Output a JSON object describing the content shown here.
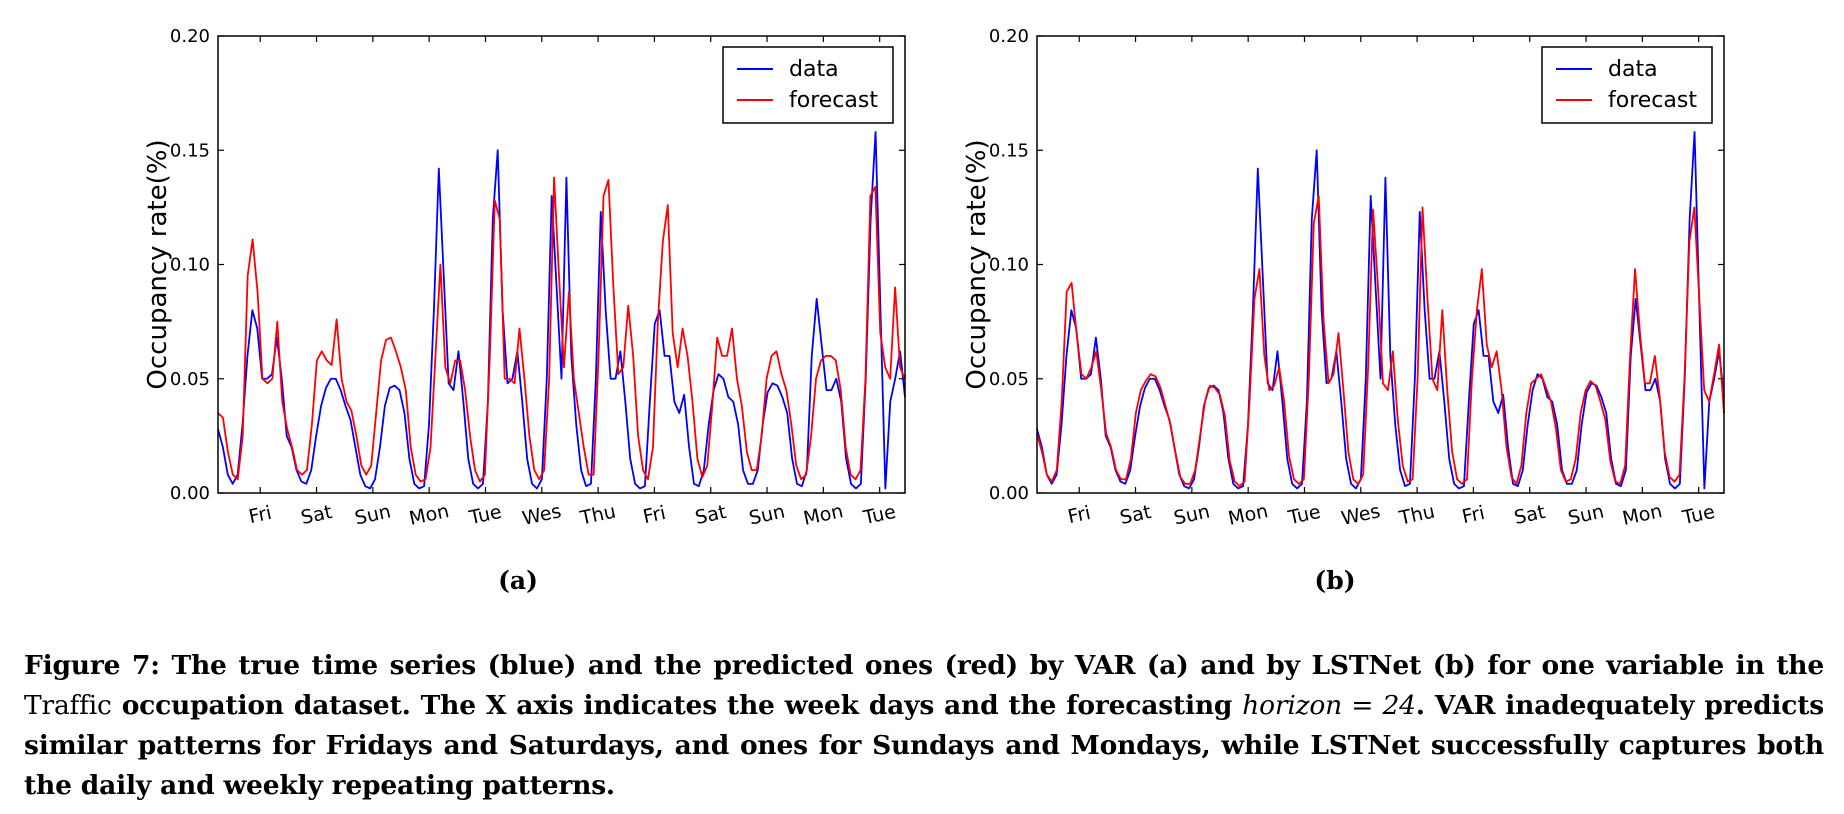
{
  "chart_data": [
    {
      "type": "line",
      "panel": "(a)",
      "xlabel": "",
      "ylabel": "Occupancy rate(%)",
      "ylim": [
        0,
        0.2
      ],
      "yticks": [
        "0.00",
        "0.05",
        "0.10",
        "0.15",
        "0.20"
      ],
      "xticks": [
        "Fri",
        "Sat",
        "Sun",
        "Mon",
        "Tue",
        "Wes",
        "Thu",
        "Fri",
        "Sat",
        "Sun",
        "Mon",
        "Tue"
      ],
      "legend": "top-right",
      "series": [
        {
          "name": "data",
          "color": "#0000ff",
          "values": [
            0.028,
            0.02,
            0.008,
            0.004,
            0.008,
            0.03,
            0.06,
            0.08,
            0.072,
            0.05,
            0.05,
            0.052,
            0.068,
            0.05,
            0.025,
            0.02,
            0.01,
            0.005,
            0.004,
            0.01,
            0.025,
            0.038,
            0.046,
            0.05,
            0.05,
            0.045,
            0.038,
            0.032,
            0.02,
            0.008,
            0.003,
            0.002,
            0.006,
            0.02,
            0.038,
            0.046,
            0.047,
            0.045,
            0.035,
            0.015,
            0.004,
            0.002,
            0.003,
            0.03,
            0.08,
            0.142,
            0.095,
            0.048,
            0.045,
            0.062,
            0.04,
            0.015,
            0.004,
            0.002,
            0.004,
            0.04,
            0.12,
            0.15,
            0.08,
            0.048,
            0.05,
            0.062,
            0.04,
            0.015,
            0.004,
            0.002,
            0.006,
            0.05,
            0.13,
            0.09,
            0.05,
            0.138,
            0.06,
            0.03,
            0.01,
            0.003,
            0.004,
            0.05,
            0.123,
            0.08,
            0.05,
            0.05,
            0.062,
            0.04,
            0.015,
            0.004,
            0.002,
            0.003,
            0.04,
            0.074,
            0.08,
            0.06,
            0.06,
            0.04,
            0.035,
            0.043,
            0.02,
            0.004,
            0.003,
            0.01,
            0.03,
            0.045,
            0.052,
            0.05,
            0.042,
            0.04,
            0.03,
            0.01,
            0.004,
            0.004,
            0.01,
            0.03,
            0.044,
            0.048,
            0.047,
            0.042,
            0.035,
            0.015,
            0.004,
            0.003,
            0.01,
            0.06,
            0.085,
            0.065,
            0.045,
            0.045,
            0.05,
            0.04,
            0.015,
            0.004,
            0.002,
            0.004,
            0.05,
            0.12,
            0.158,
            0.08,
            0.002,
            0.04,
            0.05,
            0.062,
            0.042
          ]
        },
        {
          "name": "forecast",
          "color": "#ff0000",
          "values": [
            0.035,
            0.033,
            0.018,
            0.008,
            0.006,
            0.025,
            0.095,
            0.111,
            0.088,
            0.05,
            0.048,
            0.05,
            0.075,
            0.04,
            0.028,
            0.02,
            0.01,
            0.008,
            0.01,
            0.03,
            0.058,
            0.062,
            0.058,
            0.056,
            0.076,
            0.05,
            0.04,
            0.036,
            0.025,
            0.012,
            0.008,
            0.012,
            0.035,
            0.058,
            0.067,
            0.068,
            0.062,
            0.055,
            0.045,
            0.02,
            0.008,
            0.005,
            0.006,
            0.02,
            0.06,
            0.1,
            0.055,
            0.048,
            0.058,
            0.058,
            0.045,
            0.025,
            0.01,
            0.005,
            0.008,
            0.06,
            0.128,
            0.12,
            0.05,
            0.05,
            0.048,
            0.072,
            0.05,
            0.025,
            0.01,
            0.006,
            0.01,
            0.05,
            0.138,
            0.095,
            0.055,
            0.088,
            0.05,
            0.035,
            0.02,
            0.008,
            0.008,
            0.06,
            0.13,
            0.137,
            0.09,
            0.052,
            0.055,
            0.082,
            0.06,
            0.025,
            0.01,
            0.006,
            0.02,
            0.075,
            0.11,
            0.126,
            0.07,
            0.055,
            0.072,
            0.06,
            0.04,
            0.015,
            0.007,
            0.012,
            0.038,
            0.068,
            0.06,
            0.06,
            0.072,
            0.05,
            0.038,
            0.018,
            0.01,
            0.01,
            0.025,
            0.05,
            0.06,
            0.062,
            0.052,
            0.045,
            0.03,
            0.012,
            0.006,
            0.008,
            0.025,
            0.05,
            0.058,
            0.06,
            0.06,
            0.058,
            0.045,
            0.02,
            0.008,
            0.006,
            0.01,
            0.05,
            0.13,
            0.134,
            0.07,
            0.055,
            0.05,
            0.09,
            0.055,
            0.05
          ]
        }
      ]
    },
    {
      "type": "line",
      "panel": "(b)",
      "xlabel": "",
      "ylabel": "Occupancy rate(%)",
      "ylim": [
        0,
        0.2
      ],
      "yticks": [
        "0.00",
        "0.05",
        "0.10",
        "0.15",
        "0.20"
      ],
      "xticks": [
        "Fri",
        "Sat",
        "Sun",
        "Mon",
        "Tue",
        "Wes",
        "Thu",
        "Fri",
        "Sat",
        "Sun",
        "Mon",
        "Tue"
      ],
      "legend": "top-right",
      "series": [
        {
          "name": "data",
          "color": "#0000ff",
          "values": [
            0.028,
            0.02,
            0.008,
            0.004,
            0.008,
            0.03,
            0.06,
            0.08,
            0.072,
            0.05,
            0.05,
            0.052,
            0.068,
            0.05,
            0.025,
            0.02,
            0.01,
            0.005,
            0.004,
            0.01,
            0.025,
            0.038,
            0.046,
            0.05,
            0.05,
            0.045,
            0.038,
            0.032,
            0.02,
            0.008,
            0.003,
            0.002,
            0.006,
            0.02,
            0.038,
            0.046,
            0.047,
            0.045,
            0.035,
            0.015,
            0.004,
            0.002,
            0.003,
            0.03,
            0.08,
            0.142,
            0.095,
            0.048,
            0.045,
            0.062,
            0.04,
            0.015,
            0.004,
            0.002,
            0.004,
            0.04,
            0.12,
            0.15,
            0.08,
            0.048,
            0.05,
            0.062,
            0.04,
            0.015,
            0.004,
            0.002,
            0.006,
            0.05,
            0.13,
            0.09,
            0.05,
            0.138,
            0.06,
            0.03,
            0.01,
            0.003,
            0.004,
            0.05,
            0.123,
            0.08,
            0.05,
            0.05,
            0.062,
            0.04,
            0.015,
            0.004,
            0.002,
            0.003,
            0.04,
            0.074,
            0.08,
            0.06,
            0.06,
            0.04,
            0.035,
            0.043,
            0.02,
            0.004,
            0.003,
            0.01,
            0.03,
            0.045,
            0.052,
            0.05,
            0.042,
            0.04,
            0.03,
            0.01,
            0.004,
            0.004,
            0.01,
            0.03,
            0.044,
            0.048,
            0.047,
            0.042,
            0.035,
            0.015,
            0.004,
            0.003,
            0.01,
            0.06,
            0.085,
            0.065,
            0.045,
            0.045,
            0.05,
            0.04,
            0.015,
            0.004,
            0.002,
            0.004,
            0.05,
            0.12,
            0.158,
            0.08,
            0.002,
            0.04,
            0.05,
            0.062,
            0.042
          ]
        },
        {
          "name": "forecast",
          "color": "#ff0000",
          "values": [
            0.026,
            0.018,
            0.008,
            0.005,
            0.01,
            0.04,
            0.088,
            0.092,
            0.07,
            0.052,
            0.05,
            0.055,
            0.062,
            0.045,
            0.026,
            0.02,
            0.01,
            0.006,
            0.006,
            0.015,
            0.035,
            0.045,
            0.049,
            0.052,
            0.051,
            0.046,
            0.038,
            0.03,
            0.018,
            0.007,
            0.004,
            0.004,
            0.01,
            0.025,
            0.04,
            0.047,
            0.046,
            0.043,
            0.034,
            0.014,
            0.005,
            0.003,
            0.005,
            0.04,
            0.085,
            0.098,
            0.06,
            0.045,
            0.047,
            0.055,
            0.04,
            0.016,
            0.006,
            0.004,
            0.006,
            0.05,
            0.118,
            0.13,
            0.075,
            0.048,
            0.052,
            0.07,
            0.045,
            0.018,
            0.006,
            0.004,
            0.008,
            0.055,
            0.124,
            0.09,
            0.048,
            0.045,
            0.062,
            0.032,
            0.012,
            0.005,
            0.006,
            0.05,
            0.125,
            0.085,
            0.05,
            0.045,
            0.08,
            0.045,
            0.018,
            0.006,
            0.004,
            0.006,
            0.05,
            0.08,
            0.098,
            0.065,
            0.055,
            0.062,
            0.045,
            0.02,
            0.007,
            0.004,
            0.012,
            0.035,
            0.048,
            0.05,
            0.052,
            0.046,
            0.04,
            0.028,
            0.01,
            0.005,
            0.006,
            0.015,
            0.035,
            0.045,
            0.049,
            0.047,
            0.04,
            0.032,
            0.014,
            0.005,
            0.004,
            0.012,
            0.06,
            0.098,
            0.07,
            0.048,
            0.048,
            0.06,
            0.042,
            0.018,
            0.007,
            0.005,
            0.008,
            0.05,
            0.11,
            0.125,
            0.085,
            0.045,
            0.04,
            0.052,
            0.065,
            0.035
          ]
        }
      ]
    }
  ],
  "caption": {
    "part1": "Figure 7: The true time series (blue) and the predicted ones (red) by VAR (a) and by LSTNet (b) for one variable in the ",
    "dataset_name": "Traffic",
    "part2": " occupation dataset. The X axis indicates the week days and the forecasting ",
    "horizon_expr": "horizon = 24",
    "part3": ". VAR inadequately predicts similar patterns for Fridays and Saturdays, and ones for Sundays and Mondays, while LSTNet successfully captures both the daily and weekly repeating patterns."
  }
}
